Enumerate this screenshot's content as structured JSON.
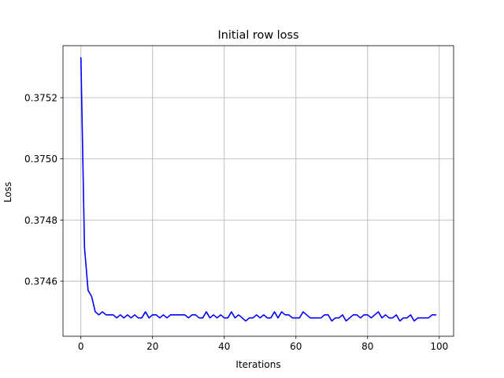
{
  "chart_data": {
    "type": "line",
    "title": "Initial row loss",
    "xlabel": "Iterations",
    "ylabel": "Loss",
    "xlim": [
      -5,
      104
    ],
    "ylim": [
      0.37442,
      0.37537
    ],
    "xticks": [
      0,
      20,
      40,
      60,
      80,
      100
    ],
    "xtick_labels": [
      "0",
      "20",
      "40",
      "60",
      "80",
      "100"
    ],
    "yticks": [
      0.3746,
      0.3748,
      0.375,
      0.3752
    ],
    "ytick_labels": [
      "0.3746",
      "0.3748",
      "0.3750",
      "0.3752"
    ],
    "grid": true,
    "series": [
      {
        "color": "#0000ff",
        "x": [
          0,
          1,
          2,
          3,
          4,
          5,
          6,
          7,
          8,
          9,
          10,
          11,
          12,
          13,
          14,
          15,
          16,
          17,
          18,
          19,
          20,
          21,
          22,
          23,
          24,
          25,
          26,
          27,
          28,
          29,
          30,
          31,
          32,
          33,
          34,
          35,
          36,
          37,
          38,
          39,
          40,
          41,
          42,
          43,
          44,
          45,
          46,
          47,
          48,
          49,
          50,
          51,
          52,
          53,
          54,
          55,
          56,
          57,
          58,
          59,
          60,
          61,
          62,
          63,
          64,
          65,
          66,
          67,
          68,
          69,
          70,
          71,
          72,
          73,
          74,
          75,
          76,
          77,
          78,
          79,
          80,
          81,
          82,
          83,
          84,
          85,
          86,
          87,
          88,
          89,
          90,
          91,
          92,
          93,
          94,
          95,
          96,
          97,
          98,
          99
        ],
        "values": [
          0.37533,
          0.37471,
          0.37457,
          0.37455,
          0.3745,
          0.37449,
          0.3745,
          0.37449,
          0.37449,
          0.37449,
          0.37448,
          0.37449,
          0.37448,
          0.37449,
          0.37448,
          0.37449,
          0.37448,
          0.37448,
          0.3745,
          0.37448,
          0.37449,
          0.37449,
          0.37448,
          0.37449,
          0.37448,
          0.37449,
          0.37449,
          0.37449,
          0.37449,
          0.37449,
          0.37448,
          0.37449,
          0.37449,
          0.37448,
          0.37448,
          0.3745,
          0.37448,
          0.37449,
          0.37448,
          0.37449,
          0.37448,
          0.37448,
          0.3745,
          0.37448,
          0.37449,
          0.37448,
          0.37447,
          0.37448,
          0.37448,
          0.37449,
          0.37448,
          0.37449,
          0.37448,
          0.37448,
          0.3745,
          0.37448,
          0.3745,
          0.37449,
          0.37449,
          0.37448,
          0.37448,
          0.37448,
          0.3745,
          0.37449,
          0.37448,
          0.37448,
          0.37448,
          0.37448,
          0.37449,
          0.37449,
          0.37447,
          0.37448,
          0.37448,
          0.37449,
          0.37447,
          0.37448,
          0.37449,
          0.37449,
          0.37448,
          0.37449,
          0.37449,
          0.37448,
          0.37449,
          0.3745,
          0.37448,
          0.37449,
          0.37448,
          0.37448,
          0.37449,
          0.37447,
          0.37448,
          0.37448,
          0.37449,
          0.37447,
          0.37448,
          0.37448,
          0.37448,
          0.37448,
          0.37449,
          0.37449
        ]
      }
    ]
  }
}
